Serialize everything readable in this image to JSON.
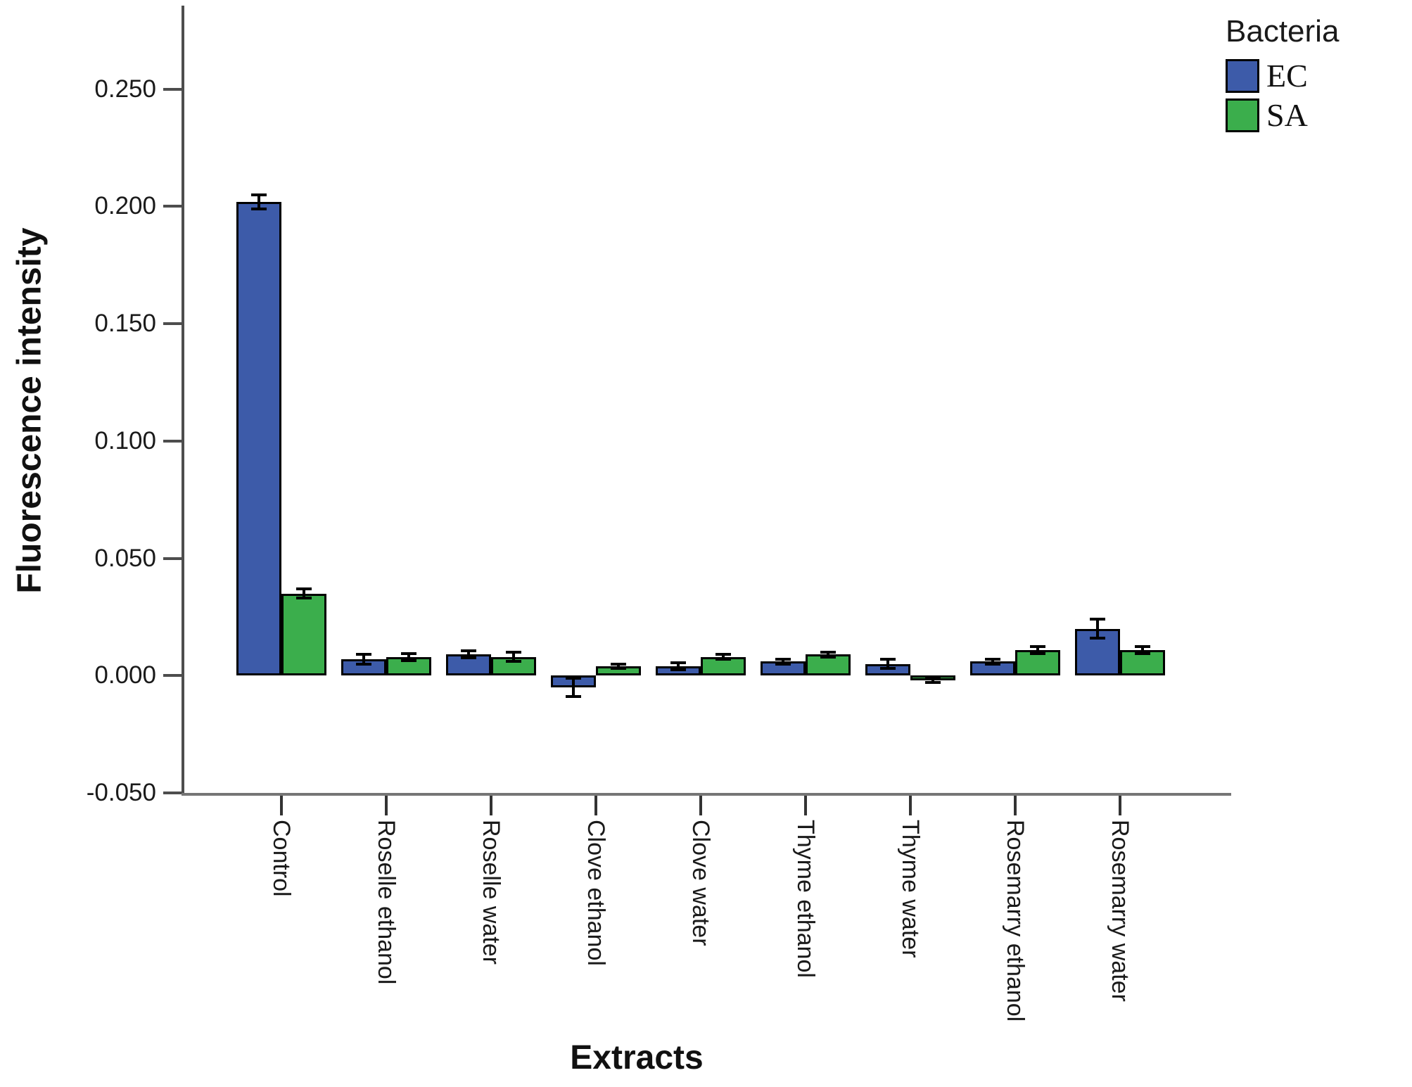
{
  "figure": {
    "y_axis_title": "Fluorescence intensity",
    "x_axis_title": "Extracts",
    "legend_title": "Bacteria"
  },
  "colors": {
    "ec_bar": "#3d5ba9",
    "sa_bar": "#3bae4c",
    "bar_border": "#000000",
    "y_axis_line": "#4d4d4d",
    "x_axis_line": "#757575",
    "error_bar": "#000000"
  },
  "chart_data": {
    "type": "bar",
    "title": "",
    "xlabel": "Extracts",
    "ylabel": "Fluorescence intensity",
    "legend_title": "Bacteria",
    "legend_position": "top-right",
    "grid": false,
    "ylim": [
      -0.05,
      0.285
    ],
    "y_tick_values": [
      0.25,
      0.2,
      0.15,
      0.1,
      0.05,
      0.0,
      -0.05
    ],
    "y_tick_labels": [
      "0.250",
      "0.200",
      "0.150",
      "0.100",
      "0.050",
      "0.000",
      "-0.050"
    ],
    "categories": [
      "Control",
      "Roselle ethanol",
      "Roselle water",
      "Clove ethanol",
      "Clove water",
      "Thyme ethanol",
      "Thyme water",
      "Rosemarry ethanol",
      "Rosemarry water"
    ],
    "series": [
      {
        "name": "EC",
        "color": "#3d5ba9",
        "values": [
          0.202,
          0.007,
          0.009,
          -0.005,
          0.004,
          0.006,
          0.005,
          0.006,
          0.02
        ],
        "errors": [
          0.003,
          0.002,
          0.0015,
          0.004,
          0.0015,
          0.001,
          0.002,
          0.001,
          0.004
        ]
      },
      {
        "name": "SA",
        "color": "#3bae4c",
        "values": [
          0.035,
          0.008,
          0.008,
          0.004,
          0.008,
          0.009,
          -0.002,
          0.011,
          0.011
        ],
        "errors": [
          0.002,
          0.0015,
          0.002,
          0.001,
          0.001,
          0.001,
          0.001,
          0.0015,
          0.0015
        ]
      }
    ]
  }
}
